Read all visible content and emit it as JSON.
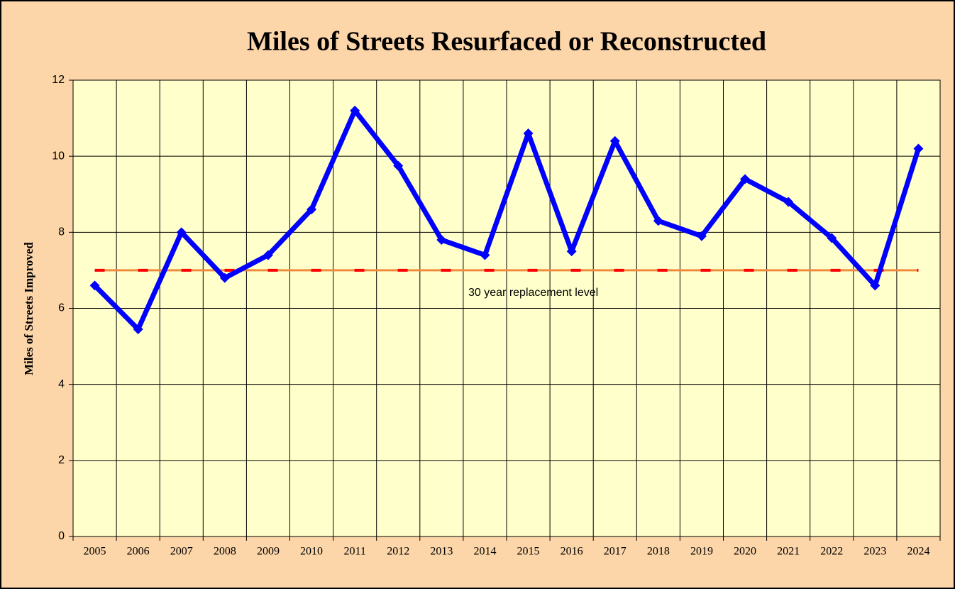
{
  "chart_data": {
    "type": "line",
    "title": "Miles of Streets Resurfaced or Reconstructed",
    "y_label": "Miles of Streets Improved",
    "categories": [
      "2005",
      "2006",
      "2007",
      "2008",
      "2009",
      "2010",
      "2011",
      "2012",
      "2013",
      "2014",
      "2015",
      "2016",
      "2017",
      "2018",
      "2019",
      "2020",
      "2021",
      "2022",
      "2023",
      "2024"
    ],
    "series": [
      {
        "color": "#0000ff",
        "values": [
          6.6,
          5.45,
          8.0,
          6.8,
          7.4,
          8.6,
          11.2,
          9.75,
          7.8,
          7.4,
          10.6,
          7.5,
          10.4,
          8.3,
          7.9,
          9.4,
          8.8,
          7.85,
          6.6,
          10.2
        ]
      }
    ],
    "reference": {
      "value": 7,
      "label": "30 year replacement level",
      "color": "#f08a3c",
      "dash_color": "#ff0000"
    },
    "ylim": [
      0,
      12
    ],
    "yticks": [
      0,
      2,
      4,
      6,
      8,
      10,
      12
    ],
    "grid": true
  }
}
